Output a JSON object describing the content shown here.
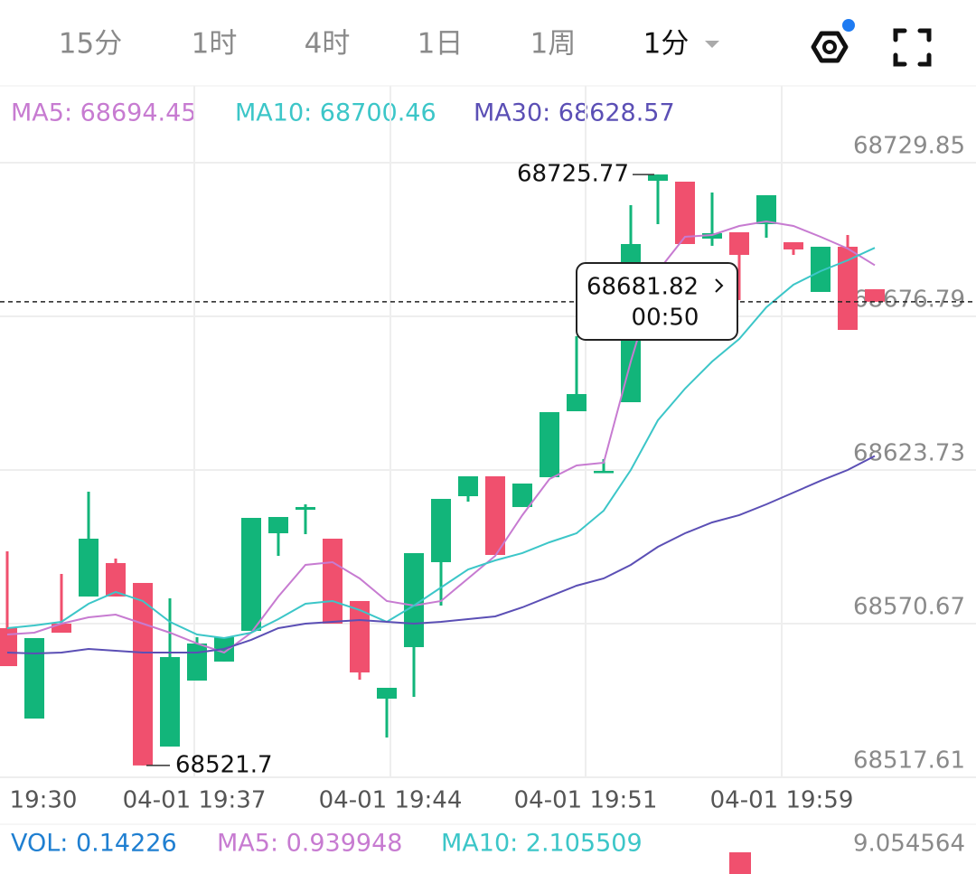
{
  "tabs": [
    "15分",
    "1时",
    "4时",
    "1日",
    "1周",
    "1分"
  ],
  "chart_data": {
    "type": "candlestick",
    "legend": [
      "MA5: 68694.45",
      "MA10: 68700.46",
      "MA30: 68628.57"
    ],
    "up_color": "#12b57a",
    "down_color": "#f0506e",
    "ylim": [
      68517.61,
      68756.38
    ],
    "yticks": [
      68729.85,
      68676.79,
      68623.73,
      68570.67,
      68517.61
    ],
    "grid": true,
    "xtick_labels": [
      "19:30",
      "04-01 19:37",
      "04-01 19:44",
      "04-01 19:51",
      "04-01 19:59"
    ],
    "candles": [
      {
        "o": 68569.11,
        "h": 68595.64,
        "l": 68556.0,
        "c": 68556.0
      },
      {
        "o": 68537.9,
        "h": 68565.68,
        "l": 68537.9,
        "c": 68565.68
      },
      {
        "o": 68570.67,
        "h": 68587.84,
        "l": 68567.55,
        "c": 68567.55
      },
      {
        "o": 68580.04,
        "h": 68616.24,
        "l": 68580.04,
        "c": 68600.01
      },
      {
        "o": 68591.59,
        "h": 68593.15,
        "l": 68580.04,
        "c": 68580.04
      },
      {
        "o": 68584.72,
        "h": 68584.72,
        "l": 68521.7,
        "c": 68521.7
      },
      {
        "o": 68528.23,
        "h": 68579.41,
        "l": 68528.23,
        "c": 68559.13
      },
      {
        "o": 68551.01,
        "h": 68565.99,
        "l": 68551.01,
        "c": 68563.81
      },
      {
        "o": 68557.57,
        "h": 68565.99,
        "l": 68557.57,
        "c": 68565.99
      },
      {
        "o": 68568.18,
        "h": 68607.19,
        "l": 68568.18,
        "c": 68607.19
      },
      {
        "o": 68601.88,
        "h": 68607.5,
        "l": 68594.08,
        "c": 68607.5
      },
      {
        "o": 68610.0,
        "h": 68611.87,
        "l": 68601.57,
        "c": 68610.94
      },
      {
        "o": 68600.01,
        "h": 68600.01,
        "l": 68570.67,
        "c": 68570.67
      },
      {
        "o": 68578.48,
        "h": 68578.48,
        "l": 68551.32,
        "c": 68553.82
      },
      {
        "o": 68544.77,
        "h": 68548.51,
        "l": 68531.35,
        "c": 68548.51
      },
      {
        "o": 68562.56,
        "h": 68595.02,
        "l": 68545.39,
        "c": 68595.02
      },
      {
        "o": 68591.9,
        "h": 68613.75,
        "l": 68576.92,
        "c": 68613.75
      },
      {
        "o": 68614.68,
        "h": 68621.55,
        "l": 68612.81,
        "c": 68621.55
      },
      {
        "o": 68621.55,
        "h": 68621.55,
        "l": 68594.39,
        "c": 68594.39
      },
      {
        "o": 68610.94,
        "h": 68619.05,
        "l": 68610.94,
        "c": 68619.05
      },
      {
        "o": 68621.24,
        "h": 68643.71,
        "l": 68621.24,
        "c": 68643.71
      },
      {
        "o": 68644.02,
        "h": 68669.92,
        "l": 68644.02,
        "c": 68649.95
      },
      {
        "o": 68622.8,
        "h": 68627.48,
        "l": 68622.8,
        "c": 68623.42
      },
      {
        "o": 68647.14,
        "h": 68715.18,
        "l": 68647.14,
        "c": 68701.76
      },
      {
        "o": 68723.61,
        "h": 68725.77,
        "l": 68708.63,
        "c": 68725.77
      },
      {
        "o": 68723.3,
        "h": 68723.3,
        "l": 68701.76,
        "c": 68701.76
      },
      {
        "o": 68703.63,
        "h": 68719.55,
        "l": 68701.14,
        "c": 68705.51
      },
      {
        "o": 68705.82,
        "h": 68705.82,
        "l": 68682.41,
        "c": 68698.01
      },
      {
        "o": 68708.63,
        "h": 68718.61,
        "l": 68703.94,
        "c": 68718.61
      },
      {
        "o": 68702.38,
        "h": 68702.38,
        "l": 68698.01,
        "c": 68699.89
      },
      {
        "o": 68685.22,
        "h": 68700.82,
        "l": 68685.22,
        "c": 68700.82
      },
      {
        "o": 68700.82,
        "h": 68704.88,
        "l": 68672.11,
        "c": 68672.11
      },
      {
        "o": 68686.15,
        "h": 68686.15,
        "l": 68681.82,
        "c": 68681.82
      }
    ],
    "series": [
      {
        "name": "MA5",
        "color": "#c77bd1",
        "values": [
          68566.93,
          68567.55,
          68570.67,
          68572.86,
          68573.79,
          68570.67,
          68567.55,
          68563.81,
          68560.69,
          68567.55,
          68580.04,
          68590.96,
          68591.9,
          68586.28,
          68578.48,
          68576.92,
          68578.48,
          68586.28,
          68594.08,
          68608.13,
          68620.61,
          68625.29,
          68626.23,
          68661.19,
          68692.4,
          68704.26,
          68704.88,
          68708.0,
          68709.56,
          68708.0,
          68704.26,
          68700.2,
          68694.45
        ]
      },
      {
        "name": "MA10",
        "color": "#3cc6c8",
        "values": [
          68569.11,
          68570.05,
          68571.3,
          68577.54,
          68581.6,
          68578.48,
          68571.3,
          68566.93,
          68565.68,
          68567.55,
          68572.23,
          68577.54,
          68578.48,
          68575.36,
          68571.3,
          68576.92,
          68583.16,
          68589.4,
          68592.52,
          68595.02,
          68598.76,
          68601.88,
          68609.69,
          68623.73,
          68640.9,
          68651.82,
          68661.19,
          68668.99,
          68679.91,
          68687.72,
          68692.4,
          68696.14,
          68700.46
        ]
      },
      {
        "name": "MA30",
        "color": "#5b4fb5",
        "values": [
          68560.69,
          68560.37,
          68560.69,
          68561.93,
          68561.31,
          68560.69,
          68560.69,
          68560.69,
          68561.93,
          68565.06,
          68569.11,
          68570.67,
          68571.3,
          68571.92,
          68571.3,
          68570.67,
          68571.3,
          68572.23,
          68573.17,
          68576.29,
          68580.04,
          68583.78,
          68586.28,
          68590.96,
          68597.2,
          68601.88,
          68605.63,
          68608.13,
          68611.87,
          68615.93,
          68619.99,
          68623.73,
          68628.57
        ]
      }
    ],
    "high_label": 68725.77,
    "low_label": 68521.7,
    "last_price": 68681.82,
    "countdown": "00:50"
  },
  "volume": {
    "legend": [
      "VOL: 0.14226",
      "MA5: 0.939948",
      "MA10: 2.105509"
    ],
    "axis_label": 9.054564
  }
}
